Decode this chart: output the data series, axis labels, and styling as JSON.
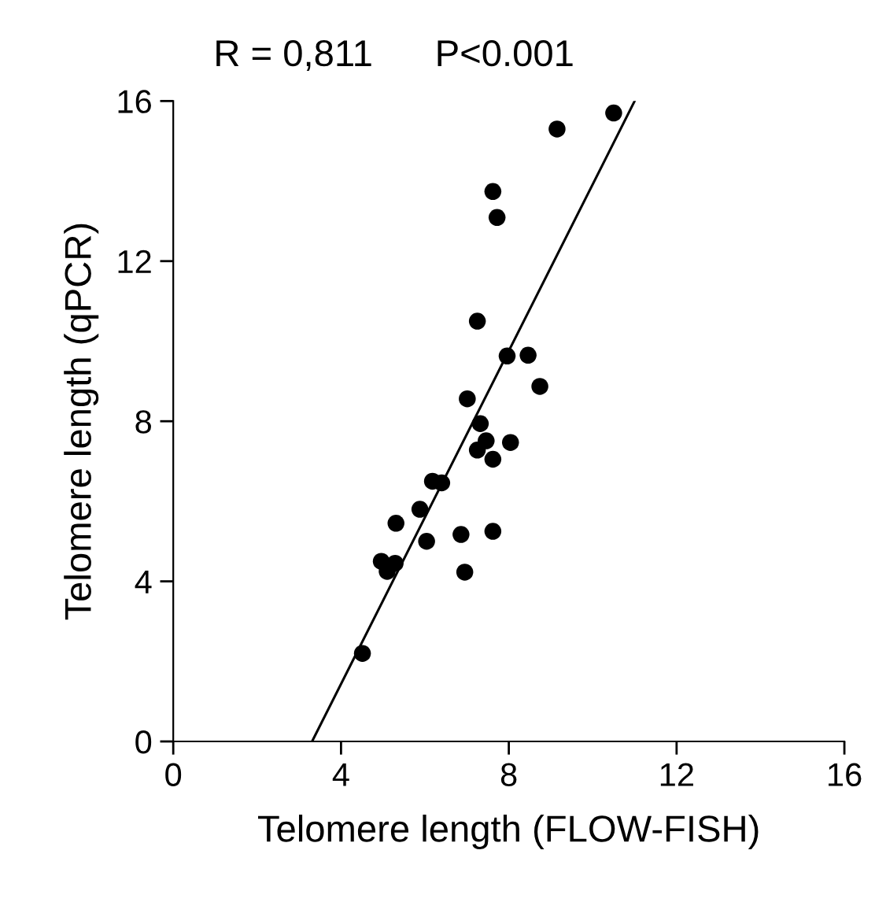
{
  "chart_data": {
    "type": "scatter",
    "title": "R = 0,811      P<0.001",
    "xlabel": "Telomere length (FLOW-FISH)",
    "ylabel": "Telomere length (qPCR)",
    "xlim": [
      0,
      16
    ],
    "ylim": [
      0,
      16
    ],
    "xticks": [
      0,
      4,
      8,
      12,
      16
    ],
    "yticks": [
      0,
      4,
      8,
      12,
      16
    ],
    "grid": false,
    "legend": false,
    "marker": "circle",
    "series": [
      {
        "color": "#000000",
        "x": [
          10.5,
          9.15,
          7.62,
          7.72,
          7.25,
          7.96,
          8.46,
          8.74,
          7.01,
          7.32,
          7.46,
          7.25,
          8.04,
          7.62,
          6.18,
          6.4,
          5.88,
          5.31,
          6.04,
          6.86,
          7.62,
          4.96,
          5.29,
          5.1,
          6.95,
          4.51
        ],
        "values": [
          15.7,
          15.3,
          13.74,
          13.09,
          10.5,
          9.63,
          9.65,
          8.87,
          8.56,
          7.94,
          7.51,
          7.28,
          7.47,
          7.05,
          6.5,
          6.46,
          5.8,
          5.45,
          5.0,
          5.17,
          5.25,
          4.5,
          4.45,
          4.25,
          4.23,
          2.2
        ]
      },
      {
        "type": "line",
        "color": "#000000",
        "line_style": "solid",
        "marker": "none",
        "x": [
          3.31,
          11.0
        ],
        "values": [
          0,
          16
        ]
      }
    ]
  }
}
